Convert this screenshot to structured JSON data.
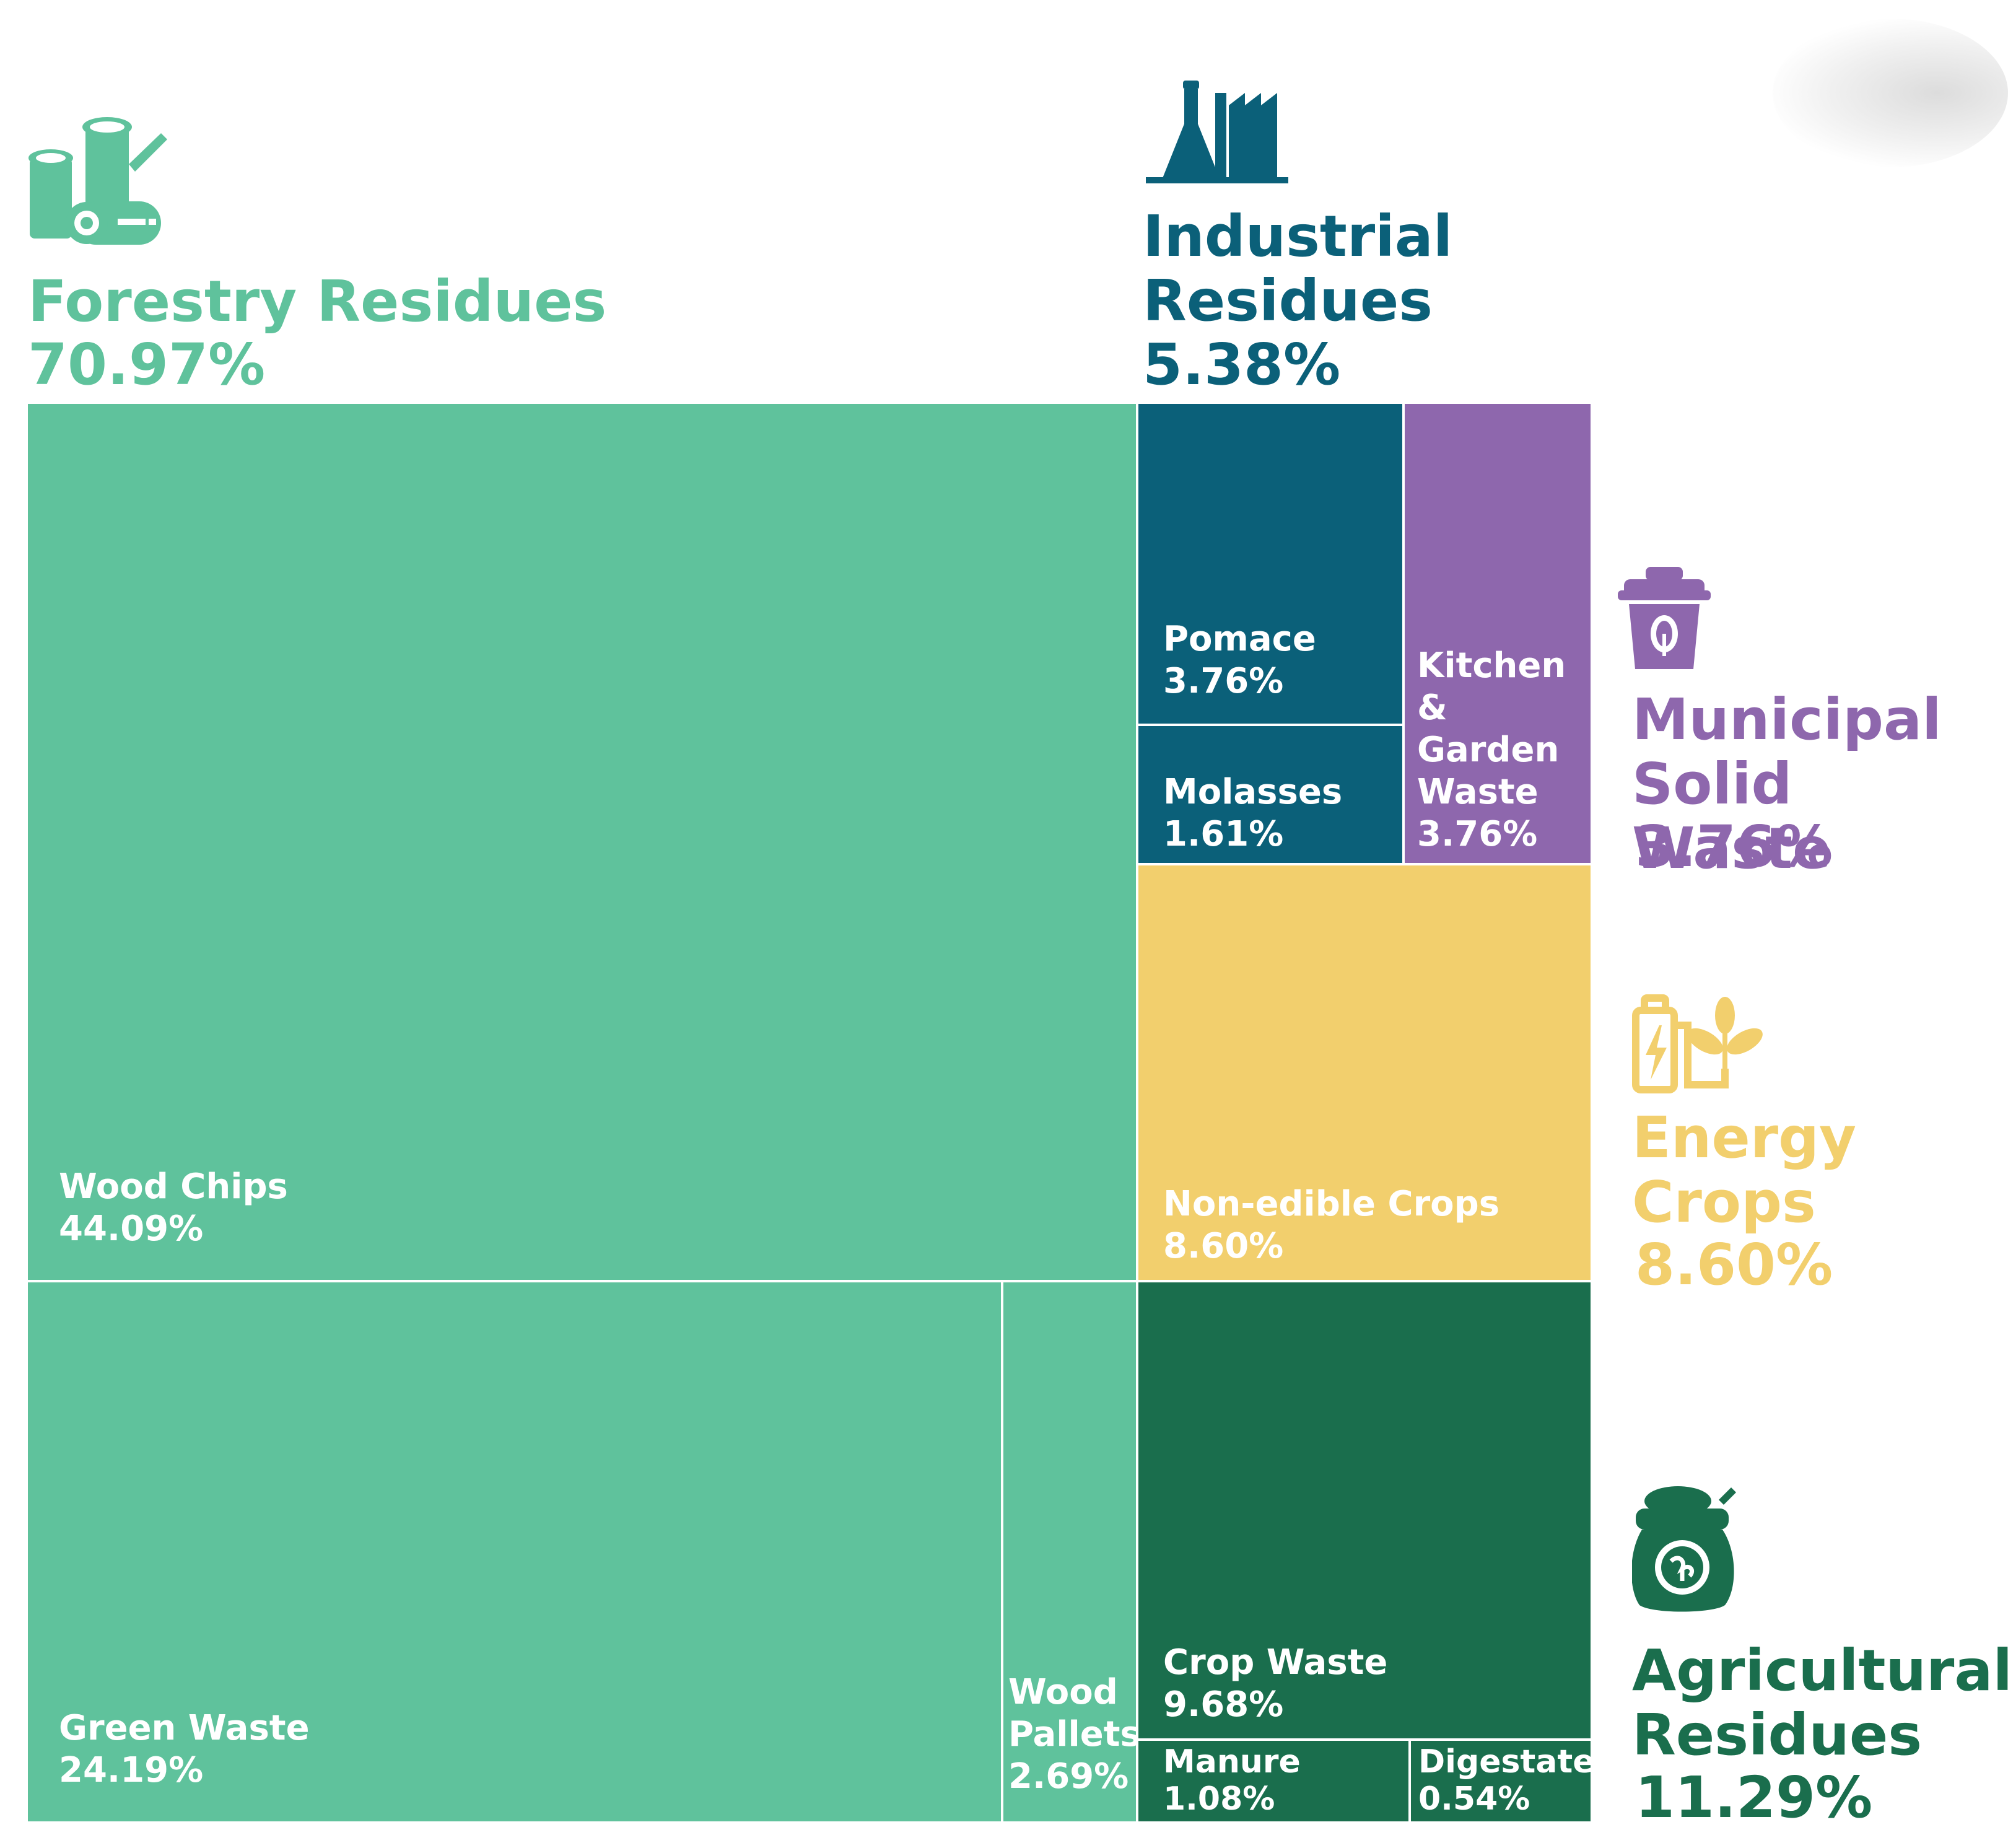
{
  "chart_data": {
    "type": "treemap",
    "title": "",
    "colors": {
      "forestry": "#5fc29c",
      "industrial": "#0b6079",
      "municipal": "#8e67ad",
      "energy": "#f2cf6d",
      "agricultural": "#1a6e4d"
    },
    "categories": [
      {
        "key": "forestry",
        "name": "Forestry Residues",
        "pct_label": "70.97%",
        "value": 70.97,
        "icon": "logs-icon",
        "children": [
          {
            "name": "Wood Chips",
            "pct_label": "44.09%",
            "value": 44.09
          },
          {
            "name": "Green Waste",
            "pct_label": "24.19%",
            "value": 24.19
          },
          {
            "name": "Wood Pallets",
            "pct_label": "2.69%",
            "value": 2.69
          }
        ]
      },
      {
        "key": "industrial",
        "name": "Industrial Residues",
        "pct_label": "5.38%",
        "value": 5.38,
        "icon": "factory-icon",
        "children": [
          {
            "name": "Pomace",
            "pct_label": "3.76%",
            "value": 3.76
          },
          {
            "name": "Molasses",
            "pct_label": "1.61%",
            "value": 1.61
          }
        ]
      },
      {
        "key": "municipal",
        "name": "Municipal Solid Waste",
        "pct_label": "3.76%",
        "value": 3.76,
        "icon": "waste-bin-icon",
        "children": [
          {
            "name": "Kitchen & Garden Waste",
            "pct_label": "3.76%",
            "value": 3.76
          }
        ]
      },
      {
        "key": "energy",
        "name": "Energy Crops",
        "pct_label": "8.60%",
        "value": 8.6,
        "icon": "battery-plant-icon",
        "children": [
          {
            "name": "Non-edible Crops",
            "pct_label": "8.60%",
            "value": 8.6
          }
        ]
      },
      {
        "key": "agricultural",
        "name": "Agricultural Residues",
        "pct_label": "11.29%",
        "value": 11.29,
        "icon": "seed-sack-icon",
        "children": [
          {
            "name": "Crop Waste",
            "pct_label": "9.68%",
            "value": 9.68
          },
          {
            "name": "Manure",
            "pct_label": "1.08%",
            "value": 1.08
          },
          {
            "name": "Digestate",
            "pct_label": "0.54%",
            "value": 0.54
          }
        ]
      }
    ]
  }
}
